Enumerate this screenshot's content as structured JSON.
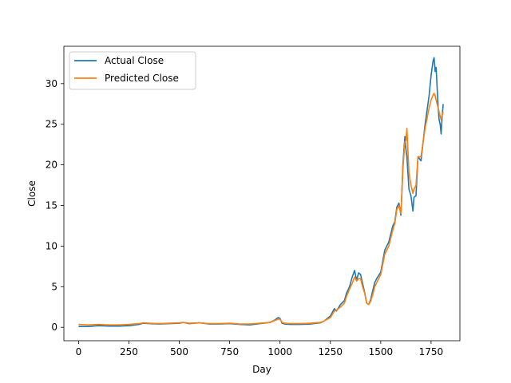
{
  "chart_data": {
    "type": "line",
    "title": "",
    "xlabel": "Day",
    "ylabel": "Close",
    "xlim": [
      -73,
      1893
    ],
    "ylim": [
      -1.65,
      34.6
    ],
    "xticks": [
      0,
      250,
      500,
      750,
      1000,
      1250,
      1500,
      1750
    ],
    "yticks": [
      0,
      5,
      10,
      15,
      20,
      25,
      30
    ],
    "grid": false,
    "legend_position": "top-left",
    "series": [
      {
        "name": "Actual Close",
        "color": "#1f77b4",
        "x": [
          0,
          50,
          100,
          150,
          200,
          250,
          300,
          320,
          350,
          400,
          450,
          500,
          520,
          550,
          600,
          650,
          700,
          750,
          800,
          850,
          900,
          950,
          975,
          990,
          1000,
          1010,
          1025,
          1050,
          1100,
          1150,
          1200,
          1220,
          1250,
          1270,
          1280,
          1300,
          1320,
          1330,
          1345,
          1360,
          1370,
          1380,
          1390,
          1400,
          1410,
          1420,
          1430,
          1440,
          1450,
          1460,
          1470,
          1480,
          1500,
          1520,
          1540,
          1560,
          1570,
          1580,
          1590,
          1600,
          1605,
          1610,
          1620,
          1625,
          1630,
          1640,
          1650,
          1660,
          1665,
          1675,
          1685,
          1700,
          1720,
          1740,
          1750,
          1760,
          1765,
          1770,
          1775,
          1780,
          1785,
          1790,
          1795,
          1800,
          1805,
          1810
        ],
        "y": [
          0.1,
          0.1,
          0.2,
          0.15,
          0.15,
          0.2,
          0.35,
          0.5,
          0.45,
          0.4,
          0.45,
          0.5,
          0.6,
          0.45,
          0.55,
          0.4,
          0.4,
          0.45,
          0.35,
          0.3,
          0.45,
          0.6,
          0.9,
          1.2,
          1.1,
          0.5,
          0.4,
          0.35,
          0.35,
          0.4,
          0.55,
          0.8,
          1.4,
          2.3,
          2.0,
          2.8,
          3.3,
          4.2,
          5.0,
          6.3,
          7.0,
          5.8,
          6.7,
          6.5,
          5.4,
          4.3,
          3.0,
          2.8,
          3.4,
          4.5,
          5.5,
          6.0,
          6.8,
          9.5,
          10.5,
          12.5,
          13.0,
          14.8,
          15.3,
          13.8,
          16.5,
          20.0,
          23.5,
          22.0,
          21.0,
          17.0,
          16.2,
          14.3,
          16.0,
          16.2,
          21.0,
          20.5,
          25.0,
          28.5,
          31.0,
          32.8,
          33.2,
          31.5,
          32.0,
          29.5,
          27.0,
          25.5,
          25.0,
          23.8,
          26.0,
          27.5
        ]
      },
      {
        "name": "Predicted Close",
        "color": "#ff7f0e",
        "x": [
          0,
          50,
          100,
          150,
          200,
          250,
          300,
          320,
          350,
          400,
          450,
          500,
          520,
          550,
          600,
          650,
          700,
          750,
          800,
          850,
          900,
          950,
          975,
          990,
          1000,
          1010,
          1025,
          1050,
          1100,
          1150,
          1200,
          1220,
          1250,
          1270,
          1280,
          1300,
          1320,
          1330,
          1345,
          1360,
          1370,
          1380,
          1390,
          1400,
          1410,
          1420,
          1430,
          1440,
          1450,
          1460,
          1470,
          1480,
          1500,
          1520,
          1540,
          1560,
          1570,
          1580,
          1590,
          1600,
          1605,
          1610,
          1620,
          1625,
          1630,
          1640,
          1650,
          1660,
          1665,
          1675,
          1685,
          1700,
          1720,
          1740,
          1750,
          1760,
          1765,
          1770,
          1775,
          1780,
          1785,
          1790,
          1795,
          1800,
          1805,
          1810
        ],
        "y": [
          0.35,
          0.3,
          0.35,
          0.3,
          0.3,
          0.35,
          0.45,
          0.55,
          0.5,
          0.45,
          0.5,
          0.55,
          0.6,
          0.5,
          0.55,
          0.45,
          0.45,
          0.5,
          0.4,
          0.4,
          0.5,
          0.6,
          0.85,
          1.0,
          1.0,
          0.6,
          0.5,
          0.45,
          0.45,
          0.5,
          0.6,
          0.8,
          1.2,
          2.0,
          2.1,
          2.5,
          3.0,
          3.8,
          4.7,
          5.5,
          6.2,
          5.7,
          6.0,
          6.0,
          5.0,
          4.2,
          3.0,
          2.8,
          3.2,
          4.0,
          5.0,
          5.5,
          6.5,
          9.0,
          10.0,
          12.0,
          12.8,
          14.5,
          15.0,
          14.0,
          16.5,
          19.5,
          22.8,
          23.0,
          24.5,
          19.0,
          17.5,
          16.5,
          17.0,
          17.5,
          21.0,
          21.0,
          24.5,
          27.0,
          28.0,
          28.6,
          28.8,
          28.5,
          28.0,
          27.5,
          27.0,
          26.5,
          26.0,
          25.5,
          26.2,
          26.5
        ]
      }
    ]
  }
}
